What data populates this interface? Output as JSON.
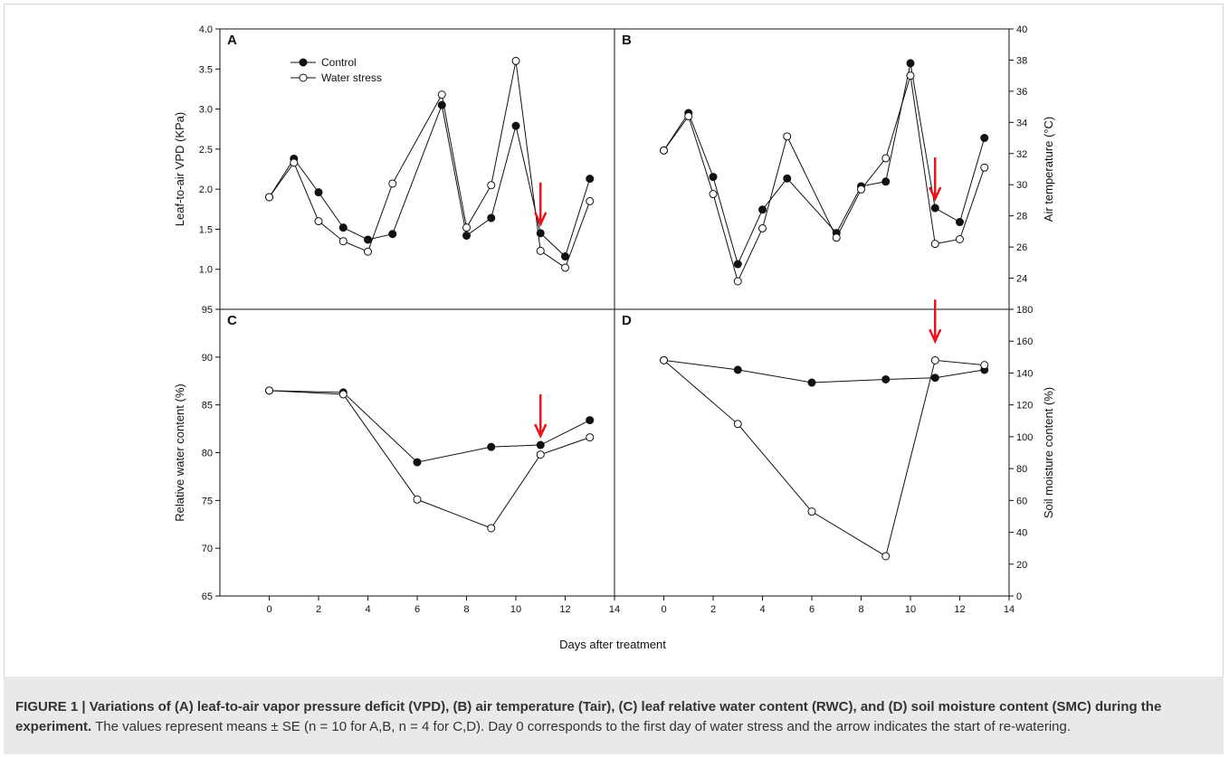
{
  "caption": {
    "title": "FIGURE 1 | Variations of (A) leaf-to-air vapor pressure deficit (VPD), (B) air temperature (Tair), (C) leaf relative water content (RWC), and (D) soil moisture content (SMC) during the experiment.",
    "body": " The values represent means ± SE (n = 10 for A,B, n = 4 for C,D). Day 0 corresponds to the first day of water stress and the arrow indicates the start of re-watering."
  },
  "colors": {
    "arrow": "#e8141b",
    "line": "#111111",
    "axis": "#111111"
  },
  "chart_data": [
    {
      "panel": "A",
      "type": "line",
      "xlabel": "",
      "ylabel": "Leaf-to-air VPD (KPa)",
      "xlim": [
        -2,
        14
      ],
      "ylim": [
        0.5,
        4.0
      ],
      "yticks": [
        "1.0",
        "1.5",
        "2.0",
        "2.5",
        "3.0",
        "3.5",
        "4.0"
      ],
      "xticks": [],
      "legend": [
        "Control",
        "Water stress"
      ],
      "legend_position": "top-left",
      "arrow_day": 11,
      "series": [
        {
          "name": "Control",
          "x": [
            0,
            1,
            2,
            3,
            4,
            5,
            7,
            8,
            9,
            10,
            11,
            12,
            13
          ],
          "y": [
            1.9,
            2.38,
            1.96,
            1.52,
            1.37,
            1.44,
            3.05,
            1.42,
            1.64,
            2.79,
            1.45,
            1.16,
            2.13
          ]
        },
        {
          "name": "Water stress",
          "x": [
            0,
            1,
            2,
            3,
            4,
            5,
            7,
            8,
            9,
            10,
            11,
            12,
            13
          ],
          "y": [
            1.9,
            2.33,
            1.6,
            1.35,
            1.22,
            2.07,
            3.18,
            1.52,
            2.05,
            3.6,
            1.23,
            1.02,
            1.85
          ]
        }
      ]
    },
    {
      "panel": "B",
      "type": "line",
      "xlabel": "",
      "ylabel": "Air temperature (°C)",
      "xlim": [
        -2,
        14
      ],
      "ylim": [
        22,
        40
      ],
      "yticks": [
        "24",
        "26",
        "28",
        "30",
        "32",
        "34",
        "36",
        "38",
        "40"
      ],
      "xticks": [],
      "arrow_day": 11,
      "series": [
        {
          "name": "Control",
          "x": [
            0,
            1,
            2,
            3,
            4,
            5,
            7,
            8,
            9,
            10,
            11,
            12,
            13
          ],
          "y": [
            32.2,
            34.6,
            30.5,
            24.9,
            28.4,
            30.4,
            26.9,
            29.9,
            30.2,
            37.8,
            28.5,
            27.6,
            33.0
          ]
        },
        {
          "name": "Water stress",
          "x": [
            0,
            1,
            2,
            3,
            4,
            5,
            7,
            8,
            9,
            10,
            11,
            12,
            13
          ],
          "y": [
            32.2,
            34.4,
            29.4,
            23.8,
            27.2,
            33.1,
            26.6,
            29.7,
            31.7,
            37.0,
            26.2,
            26.5,
            31.1
          ]
        }
      ]
    },
    {
      "panel": "C",
      "type": "line",
      "xlabel": "",
      "ylabel": "Relative water content (%)",
      "xlim": [
        -2,
        14
      ],
      "ylim": [
        65,
        95
      ],
      "yticks": [
        "65",
        "70",
        "75",
        "80",
        "85",
        "90",
        "95"
      ],
      "xticks": [
        "0",
        "2",
        "4",
        "6",
        "8",
        "10",
        "12",
        "14"
      ],
      "arrow_day": 11,
      "series": [
        {
          "name": "Control",
          "x": [
            0,
            3,
            6,
            9,
            11,
            13
          ],
          "y": [
            86.5,
            86.3,
            79.0,
            80.6,
            80.8,
            83.4
          ]
        },
        {
          "name": "Water stress",
          "x": [
            0,
            3,
            6,
            9,
            11,
            13
          ],
          "y": [
            86.5,
            86.1,
            75.1,
            72.1,
            79.8,
            81.6
          ]
        }
      ]
    },
    {
      "panel": "D",
      "type": "line",
      "xlabel": "",
      "ylabel": "Soil moisture content (%)",
      "xlim": [
        -2,
        14
      ],
      "ylim": [
        0,
        180
      ],
      "yticks": [
        "0",
        "20",
        "40",
        "60",
        "80",
        "100",
        "120",
        "140",
        "160",
        "180"
      ],
      "xticks": [
        "0",
        "2",
        "4",
        "6",
        "8",
        "10",
        "12",
        "14"
      ],
      "arrow_day": 11,
      "series": [
        {
          "name": "Control",
          "x": [
            0,
            3,
            6,
            9,
            11,
            13
          ],
          "y": [
            148,
            142,
            134,
            136,
            137,
            142
          ]
        },
        {
          "name": "Water stress",
          "x": [
            0,
            3,
            6,
            9,
            11,
            13
          ],
          "y": [
            148,
            108,
            53,
            25,
            148,
            145
          ]
        }
      ]
    }
  ],
  "shared_xlabel": "Days after treatment"
}
